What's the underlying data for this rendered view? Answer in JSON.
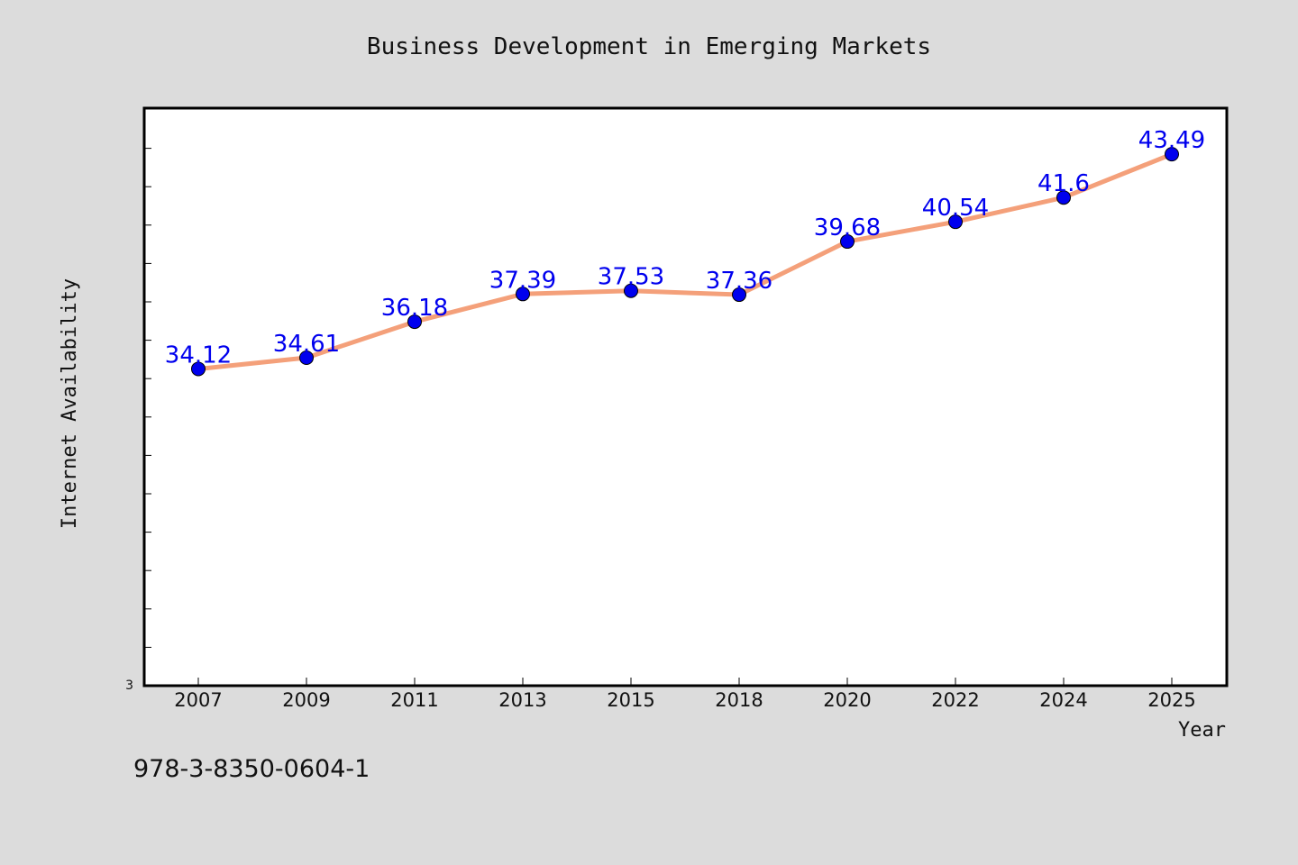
{
  "chart_data": {
    "type": "line",
    "title": "Business Development in Emerging Markets",
    "xlabel": "Year",
    "ylabel": "Internet Availability",
    "categories": [
      "2007",
      "2009",
      "2011",
      "2013",
      "2015",
      "2018",
      "2020",
      "2022",
      "2024",
      "2025"
    ],
    "series": [
      {
        "values": [
          34.12,
          34.61,
          36.18,
          37.39,
          37.53,
          37.36,
          39.68,
          40.54,
          41.6,
          43.49
        ],
        "data_labels": [
          "34.12",
          "34.61",
          "36.18",
          "37.39",
          "37.53",
          "37.36",
          "39.68",
          "40.54",
          "41.6",
          "43.49"
        ]
      }
    ],
    "ylim": [
      20.3,
      45.5
    ],
    "y_tick_labels": [
      "3"
    ],
    "grid": false,
    "legend": "none",
    "colors": {
      "line": "#f4a07a",
      "marker": "#0000ee",
      "data_label": "#0000ee",
      "plot_background": "#ffffff",
      "figure_background": "#dcdcdc"
    }
  },
  "footer": {
    "code": "978-3-8350-0604-1"
  }
}
